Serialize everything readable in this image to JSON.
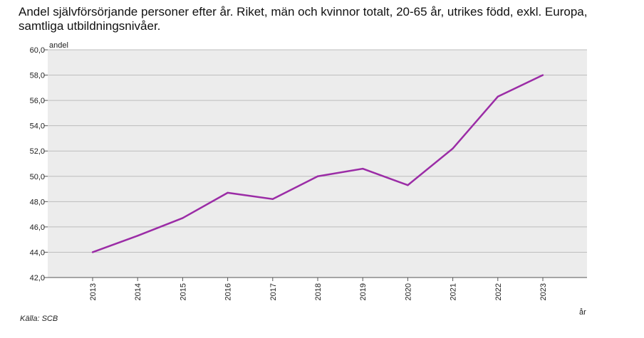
{
  "title": "Andel självförsörjande personer efter år. Riket, män och kvinnor totalt, 20-65 år, utrikes född, exkl. Europa, samtliga utbildningsnivåer.",
  "source": "Källa: SCB",
  "chart_data": {
    "type": "line",
    "title": "Andel självförsörjande personer efter år. Riket, män och kvinnor totalt, 20-65 år, utrikes född, exkl. Europa, samtliga utbildningsnivåer.",
    "xlabel": "år",
    "ylabel": "andel",
    "categories": [
      "2013",
      "2014",
      "2015",
      "2016",
      "2017",
      "2018",
      "2019",
      "2020",
      "2021",
      "2022",
      "2023"
    ],
    "series": [
      {
        "values": [
          44.0,
          45.3,
          46.7,
          48.7,
          48.2,
          50.0,
          50.6,
          49.3,
          52.2,
          56.3,
          58.0
        ],
        "color": "#9b2ca6"
      }
    ],
    "ylim": [
      42.0,
      60.0
    ],
    "yticks": [
      "42,0",
      "44,0",
      "46,0",
      "48,0",
      "50,0",
      "52,0",
      "54,0",
      "56,0",
      "58,0",
      "60,0"
    ],
    "grid": true,
    "plot_background": "#ececec",
    "legend": "none"
  }
}
